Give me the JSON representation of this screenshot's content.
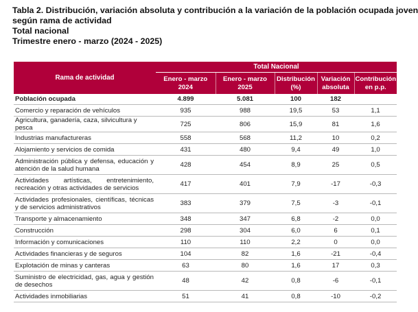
{
  "title": {
    "line1": "Tabla 2. Distribución, variación absoluta y contribución a la variación de la población ocupada joven",
    "line2": "según rama de actividad",
    "line3": "Total nacional",
    "line4": "Trimestre enero - marzo (2024 - 2025)"
  },
  "table": {
    "group_header": "Total Nacional",
    "col_rama": "Rama de actividad",
    "cols": [
      "Enero - marzo\n2024",
      "Enero - marzo\n2025",
      "Distribución\n(%)",
      "Variación\nabsoluta",
      "Contribución\nen p.p."
    ],
    "total": {
      "label": "Población ocupada",
      "v2024": "4.899",
      "v2025": "5.081",
      "dist": "100",
      "var": "182",
      "contrib": ""
    },
    "rows": [
      {
        "label": "Comercio y reparación de vehículos",
        "v2024": "935",
        "v2025": "988",
        "dist": "19,5",
        "var": "53",
        "contrib": "1,1"
      },
      {
        "label": "Agricultura, ganadería, caza, silvicultura y pesca",
        "v2024": "725",
        "v2025": "806",
        "dist": "15,9",
        "var": "81",
        "contrib": "1,6"
      },
      {
        "label": "Industrias manufactureras",
        "v2024": "558",
        "v2025": "568",
        "dist": "11,2",
        "var": "10",
        "contrib": "0,2"
      },
      {
        "label": "Alojamiento y servicios de comida",
        "v2024": "431",
        "v2025": "480",
        "dist": "9,4",
        "var": "49",
        "contrib": "1,0"
      },
      {
        "label": "Administración pública y defensa, educación y atención de la salud humana",
        "v2024": "428",
        "v2025": "454",
        "dist": "8,9",
        "var": "25",
        "contrib": "0,5"
      },
      {
        "label": "Actividades artísticas, entretenimiento, recreación y otras actividades de servicios",
        "v2024": "417",
        "v2025": "401",
        "dist": "7,9",
        "var": "-17",
        "contrib": "-0,3"
      },
      {
        "label": "Actividades profesionales, científicas, técnicas y de servicios administrativos",
        "v2024": "383",
        "v2025": "379",
        "dist": "7,5",
        "var": "-3",
        "contrib": "-0,1"
      },
      {
        "label": "Transporte y almacenamiento",
        "v2024": "348",
        "v2025": "347",
        "dist": "6,8",
        "var": "-2",
        "contrib": "0,0"
      },
      {
        "label": "Construcción",
        "v2024": "298",
        "v2025": "304",
        "dist": "6,0",
        "var": "6",
        "contrib": "0,1"
      },
      {
        "label": "Información y comunicaciones",
        "v2024": "110",
        "v2025": "110",
        "dist": "2,2",
        "var": "0",
        "contrib": "0,0"
      },
      {
        "label": "Actividades financieras y de seguros",
        "v2024": "104",
        "v2025": "82",
        "dist": "1,6",
        "var": "-21",
        "contrib": "-0,4"
      },
      {
        "label": "Explotación de minas y canteras",
        "v2024": "63",
        "v2025": "80",
        "dist": "1,6",
        "var": "17",
        "contrib": "0,3"
      },
      {
        "label": "Suministro de electricidad, gas, agua y gestión de desechos",
        "v2024": "48",
        "v2025": "42",
        "dist": "0,8",
        "var": "-6",
        "contrib": "-0,1"
      },
      {
        "label": "Actividades inmobiliarias",
        "v2024": "51",
        "v2025": "41",
        "dist": "0,8",
        "var": "-10",
        "contrib": "-0,2"
      }
    ]
  },
  "colors": {
    "header_bg": "#b0003a",
    "header_text": "#ffffff",
    "row_border": "#b8b8b8"
  }
}
